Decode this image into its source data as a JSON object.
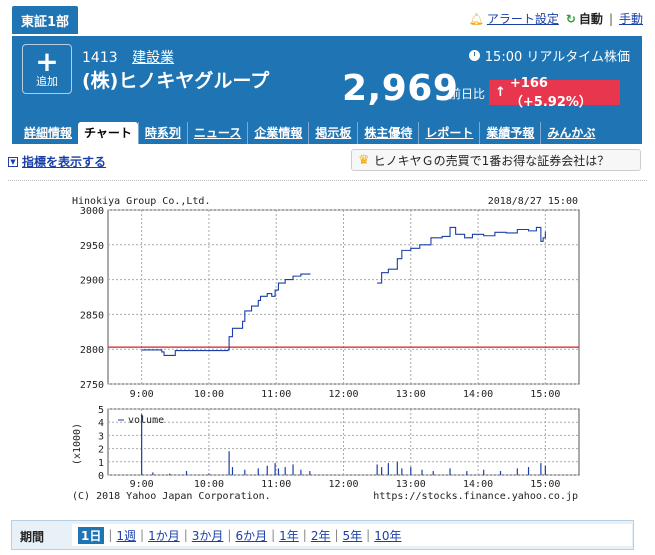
{
  "market_tab": "東証1部",
  "top_links": {
    "alert": "アラート設定",
    "auto": "自動",
    "manual": "手動"
  },
  "header": {
    "add_label": "追加",
    "code": "1413",
    "industry": "建設業",
    "company": "(株)ヒノキヤグループ",
    "realtime": "15:00 リアルタイム株価",
    "price": "2,969",
    "prev_label": "前日比",
    "change": "+166（+5.92%）",
    "accent": "#1f74b3",
    "change_color": "#e8364f"
  },
  "tabs": [
    "詳細情報",
    "チャート",
    "時系列",
    "ニュース",
    "企業情報",
    "掲示板",
    "株主優待",
    "レポート",
    "業績予報",
    "みんかぶ"
  ],
  "active_tab": "チャート",
  "indicator_link": "指標を表示する",
  "promo": "ヒノキヤＧの売買で1番お得な証券会社は？",
  "chart_data": {
    "type": "line",
    "title": "Hinokiya Group Co.,Ltd.",
    "date": "2018/8/27 15:00",
    "x_ticks": [
      "9:00",
      "10:00",
      "11:00",
      "12:00",
      "13:00",
      "14:00",
      "15:00"
    ],
    "ylim": [
      2750,
      3000
    ],
    "y_ticks": [
      "3000",
      "2950",
      "2900",
      "2850",
      "2800",
      "2750"
    ],
    "reference_line": 2803,
    "reference_color": "#d42020",
    "line_color": "#1a3fa8",
    "price_series": [
      [
        "9:00",
        2799
      ],
      [
        "9:10",
        2799
      ],
      [
        "9:18",
        2796
      ],
      [
        "9:20",
        2791
      ],
      [
        "9:30",
        2798
      ],
      [
        "10:00",
        2798
      ],
      [
        "10:17",
        2799
      ],
      [
        "10:18",
        2818
      ],
      [
        "10:21",
        2830
      ],
      [
        "10:30",
        2840
      ],
      [
        "10:32",
        2855
      ],
      [
        "10:38",
        2862
      ],
      [
        "10:44",
        2870
      ],
      [
        "10:46",
        2876
      ],
      [
        "10:52",
        2880
      ],
      [
        "10:56",
        2876
      ],
      [
        "10:59",
        2885
      ],
      [
        "11:02",
        2895
      ],
      [
        "11:08",
        2900
      ],
      [
        "11:15",
        2905
      ],
      [
        "11:22",
        2908
      ],
      [
        "11:30",
        2909
      ],
      [
        "12:30",
        2895
      ],
      [
        "12:34",
        2910
      ],
      [
        "12:40",
        2915
      ],
      [
        "12:48",
        2930
      ],
      [
        "12:52",
        2942
      ],
      [
        "13:00",
        2945
      ],
      [
        "13:08",
        2950
      ],
      [
        "13:18",
        2960
      ],
      [
        "13:28",
        2962
      ],
      [
        "13:35",
        2975
      ],
      [
        "13:40",
        2965
      ],
      [
        "13:48",
        2960
      ],
      [
        "13:55",
        2965
      ],
      [
        "14:05",
        2963
      ],
      [
        "14:15",
        2968
      ],
      [
        "14:25",
        2967
      ],
      [
        "14:35",
        2972
      ],
      [
        "14:45",
        2970
      ],
      [
        "14:52",
        2975
      ],
      [
        "14:56",
        2955
      ],
      [
        "14:58",
        2960
      ],
      [
        "15:00",
        2969
      ]
    ],
    "volume_label": "volume",
    "volume_ylabel": "(x1000)",
    "volume_y_ticks": [
      "5",
      "4",
      "3",
      "2",
      "1",
      "0"
    ],
    "volume_ylim": [
      0,
      5
    ],
    "volume_series": [
      [
        "9:00",
        4.6
      ],
      [
        "9:10",
        0.2
      ],
      [
        "9:25",
        0.1
      ],
      [
        "9:40",
        0.3
      ],
      [
        "10:00",
        0.1
      ],
      [
        "10:18",
        1.8
      ],
      [
        "10:21",
        0.6
      ],
      [
        "10:32",
        0.4
      ],
      [
        "10:44",
        0.5
      ],
      [
        "10:52",
        0.7
      ],
      [
        "10:59",
        0.9
      ],
      [
        "11:02",
        0.5
      ],
      [
        "11:08",
        0.6
      ],
      [
        "11:15",
        0.8
      ],
      [
        "11:22",
        0.4
      ],
      [
        "11:30",
        0.3
      ],
      [
        "12:30",
        0.8
      ],
      [
        "12:34",
        0.6
      ],
      [
        "12:40",
        0.9
      ],
      [
        "12:48",
        1.0
      ],
      [
        "12:52",
        0.5
      ],
      [
        "13:00",
        0.6
      ],
      [
        "13:10",
        0.4
      ],
      [
        "13:20",
        0.3
      ],
      [
        "13:35",
        0.5
      ],
      [
        "13:50",
        0.3
      ],
      [
        "14:05",
        0.4
      ],
      [
        "14:20",
        0.3
      ],
      [
        "14:35",
        0.5
      ],
      [
        "14:45",
        0.6
      ],
      [
        "14:56",
        0.9
      ],
      [
        "15:00",
        0.7
      ]
    ],
    "copyright": "(C) 2018 Yahoo Japan Corporation.",
    "source_url": "https://stocks.finance.yahoo.co.jp"
  },
  "period": {
    "label": "期間",
    "options": [
      "1日",
      "1週",
      "1か月",
      "3か月",
      "6か月",
      "1年",
      "2年",
      "5年",
      "10年"
    ],
    "selected": "1日"
  }
}
